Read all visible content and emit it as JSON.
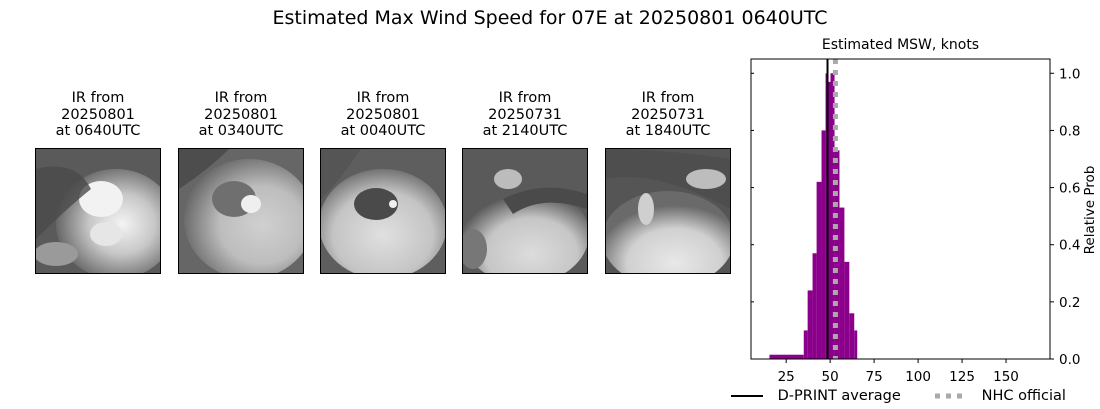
{
  "suptitle": "Estimated Max Wind Speed for 07E at 20250801 0640UTC",
  "ir_panels": [
    {
      "line1": "IR from",
      "line2": "20250801",
      "line3": "at 0640UTC"
    },
    {
      "line1": "IR from",
      "line2": "20250801",
      "line3": "at 0340UTC"
    },
    {
      "line1": "IR from",
      "line2": "20250801",
      "line3": "at 0040UTC"
    },
    {
      "line1": "IR from",
      "line2": "20250731",
      "line3": "at 2140UTC"
    },
    {
      "line1": "IR from",
      "line2": "20250731",
      "line3": "at 1840UTC"
    }
  ],
  "legend": {
    "dprint_label": "D-PRINT average",
    "nhc_label": "NHC official"
  },
  "colors": {
    "bar": "#8b008b",
    "dprint_line": "#000000",
    "nhc_line": "#aaaaaa"
  },
  "chart_data": {
    "type": "bar",
    "title": "Estimated MSW, knots",
    "xlabel": "",
    "ylabel": "Relative Prob",
    "ylabel_position": "right",
    "xlim": [
      5,
      175
    ],
    "ylim": [
      0,
      1.05
    ],
    "xticks": [
      25,
      50,
      75,
      100,
      125,
      150
    ],
    "yticks": [
      0.0,
      0.2,
      0.4,
      0.6,
      0.8,
      1.0
    ],
    "ytick_labels": [
      "0.0",
      "0.2",
      "0.4",
      "0.6",
      "0.8",
      "1.0"
    ],
    "grid": false,
    "bins": [
      {
        "left": 15.5,
        "right": 35.0,
        "value": 0.015
      },
      {
        "left": 35.0,
        "right": 37.2,
        "value": 0.1
      },
      {
        "left": 37.2,
        "right": 40.0,
        "value": 0.24
      },
      {
        "left": 40.0,
        "right": 42.3,
        "value": 0.37
      },
      {
        "left": 42.3,
        "right": 45.1,
        "value": 0.62
      },
      {
        "left": 45.1,
        "right": 47.4,
        "value": 0.8
      },
      {
        "left": 47.4,
        "right": 48.5,
        "value": 1.0
      },
      {
        "left": 48.5,
        "right": 50.2,
        "value": 0.97
      },
      {
        "left": 50.2,
        "right": 52.5,
        "value": 1.0
      },
      {
        "left": 52.5,
        "right": 55.3,
        "value": 0.73
      },
      {
        "left": 55.3,
        "right": 58.1,
        "value": 0.53
      },
      {
        "left": 58.1,
        "right": 60.9,
        "value": 0.34
      },
      {
        "left": 60.9,
        "right": 63.7,
        "value": 0.16
      },
      {
        "left": 63.7,
        "right": 65.4,
        "value": 0.1
      }
    ],
    "series": [
      {
        "name": "D-PRINT average",
        "type": "vline",
        "x": 48.5,
        "style": "solid",
        "color": "#000000"
      },
      {
        "name": "NHC official",
        "type": "vline",
        "x": 53,
        "style": "dotted",
        "color": "#aaaaaa"
      }
    ],
    "legend_position": "bottom"
  }
}
